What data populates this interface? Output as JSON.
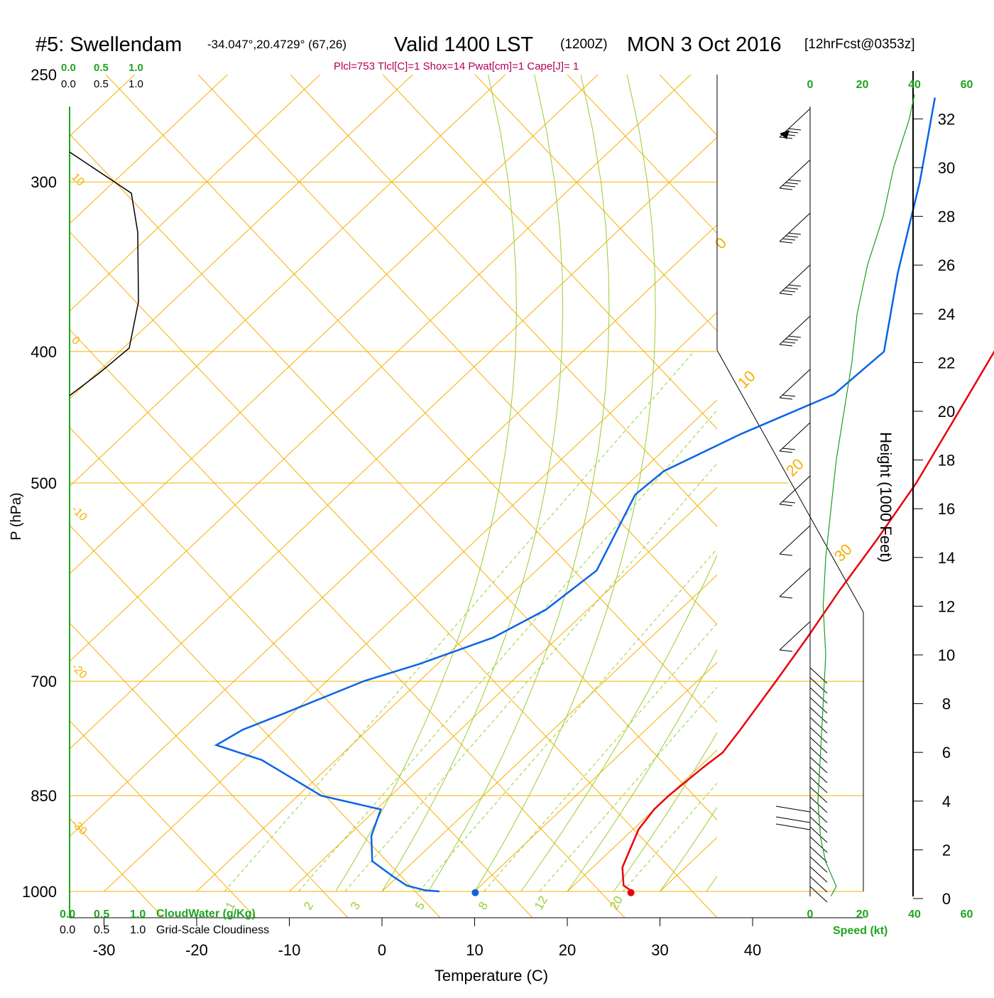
{
  "header": {
    "title_main": "#5: Swellendam",
    "coords": "-34.047°,20.4729° (67,26)",
    "valid": "Valid 1400 LST",
    "utc": "(1200Z)",
    "date": "MON 3 Oct 2016",
    "fcst": "[12hrFcst@0353z]",
    "indices": "Plcl=753 Tlcl[C]=1 Shox=14 Pwat[cm]=1 Cape[J]= 1"
  },
  "chart_data": {
    "type": "skew-t",
    "xlabel": "Temperature (C)",
    "ylabel": "P (hPa)",
    "ylabel_right": "Height (1000 Feet)",
    "x_ticks": [
      "-30",
      "-20",
      "-10",
      "0",
      "10",
      "20",
      "30",
      "40"
    ],
    "x_tick_values": [
      -30,
      -20,
      -10,
      0,
      10,
      20,
      30,
      40
    ],
    "p_ticks": [
      "250",
      "300",
      "400",
      "500",
      "700",
      "850",
      "1000"
    ],
    "p_tick_values": [
      250,
      300,
      400,
      500,
      700,
      850,
      1000
    ],
    "height_ticks": [
      "0",
      "2",
      "4",
      "6",
      "8",
      "10",
      "12",
      "14",
      "16",
      "18",
      "20",
      "22",
      "24",
      "26",
      "28",
      "30",
      "32"
    ],
    "height_tick_values": [
      0,
      2,
      4,
      6,
      8,
      10,
      12,
      14,
      16,
      18,
      20,
      22,
      24,
      26,
      28,
      30,
      32
    ],
    "temperature": {
      "color": "#e8000b",
      "points": [
        [
          1000,
          27.0
        ],
        [
          990,
          25.4
        ],
        [
          960,
          23.2
        ],
        [
          900,
          20.6
        ],
        [
          870,
          20.0
        ],
        [
          850,
          20.0
        ],
        [
          810,
          20.5
        ],
        [
          790,
          20.9
        ],
        [
          760,
          20.2
        ],
        [
          700,
          18.5
        ],
        [
          650,
          16.9
        ],
        [
          600,
          15.0
        ],
        [
          550,
          13.2
        ],
        [
          500,
          11.0
        ],
        [
          450,
          7.9
        ],
        [
          400,
          4.4
        ],
        [
          350,
          0.0
        ],
        [
          300,
          -5.5
        ],
        [
          260,
          -10.5
        ]
      ],
      "surface_marker": [
        1002,
        27.0
      ]
    },
    "dewpoint": {
      "color": "#0a64e6",
      "points": [
        [
          1000,
          6.2
        ],
        [
          998,
          4.5
        ],
        [
          990,
          2.0
        ],
        [
          975,
          -0.5
        ],
        [
          950,
          -4.5
        ],
        [
          910,
          -7.5
        ],
        [
          880,
          -9.0
        ],
        [
          870,
          -9.5
        ],
        [
          850,
          -17.5
        ],
        [
          800,
          -28.0
        ],
        [
          780,
          -34.6
        ],
        [
          760,
          -33.5
        ],
        [
          740,
          -31.0
        ],
        [
          700,
          -26.0
        ],
        [
          680,
          -22.0
        ],
        [
          650,
          -17.0
        ],
        [
          620,
          -14.5
        ],
        [
          580,
          -13.5
        ],
        [
          540,
          -16.0
        ],
        [
          510,
          -18.0
        ],
        [
          490,
          -17.6
        ],
        [
          460,
          -13.5
        ],
        [
          430,
          -8.0
        ],
        [
          400,
          -7.5
        ],
        [
          350,
          -15.0
        ],
        [
          300,
          -23.0
        ],
        [
          260,
          -31.0
        ]
      ],
      "surface_marker": [
        1002,
        10.2
      ]
    },
    "cloud_axes": {
      "top_green": [
        "0.0",
        "0.5",
        "1.0"
      ],
      "top_black": [
        "0.0",
        "0.5",
        "1.0"
      ],
      "bottom_green": [
        "0.0",
        "0.5",
        "1.0"
      ],
      "bottom_black": [
        "0.0",
        "0.5",
        "1.0"
      ],
      "cloudwater_label": "CloudWater (g/Kg)",
      "cloudiness_label": "Grid-Scale Cloudiness"
    },
    "dry_adiabat_labels": [
      "10",
      "0",
      "-10",
      "-20",
      "-30"
    ],
    "isotherm_labels": [
      "0",
      "10",
      "20",
      "30"
    ],
    "mixing_ratio_labels": [
      "1",
      "2",
      "3",
      "5",
      "8",
      "12",
      "20"
    ],
    "wind_speed": {
      "axis_label": "Speed (kt)",
      "tick_labels": [
        "0",
        "20",
        "40",
        "60"
      ],
      "tick_values": [
        0,
        20,
        40,
        60
      ],
      "profile_kt": [
        [
          0.1,
          8
        ],
        [
          0.5,
          10
        ],
        [
          1.5,
          6
        ],
        [
          2.5,
          4
        ],
        [
          4,
          3
        ],
        [
          6,
          4
        ],
        [
          8,
          5
        ],
        [
          10,
          6
        ],
        [
          12,
          5
        ],
        [
          14,
          6
        ],
        [
          16,
          8
        ],
        [
          18,
          10
        ],
        [
          20,
          13
        ],
        [
          22,
          16
        ],
        [
          24,
          18
        ],
        [
          26,
          22
        ],
        [
          28,
          28
        ],
        [
          30,
          32
        ],
        [
          32,
          38
        ],
        [
          33,
          40
        ]
      ],
      "color": "#1a9e1a"
    }
  },
  "colors": {
    "isotherm": "#f5b000",
    "moist_adiabat": "#9acd32",
    "mixing_ratio": "#9acd32",
    "index_text": "#b0005a",
    "cloud_green": "#1fa51f",
    "axis": "#000000"
  }
}
